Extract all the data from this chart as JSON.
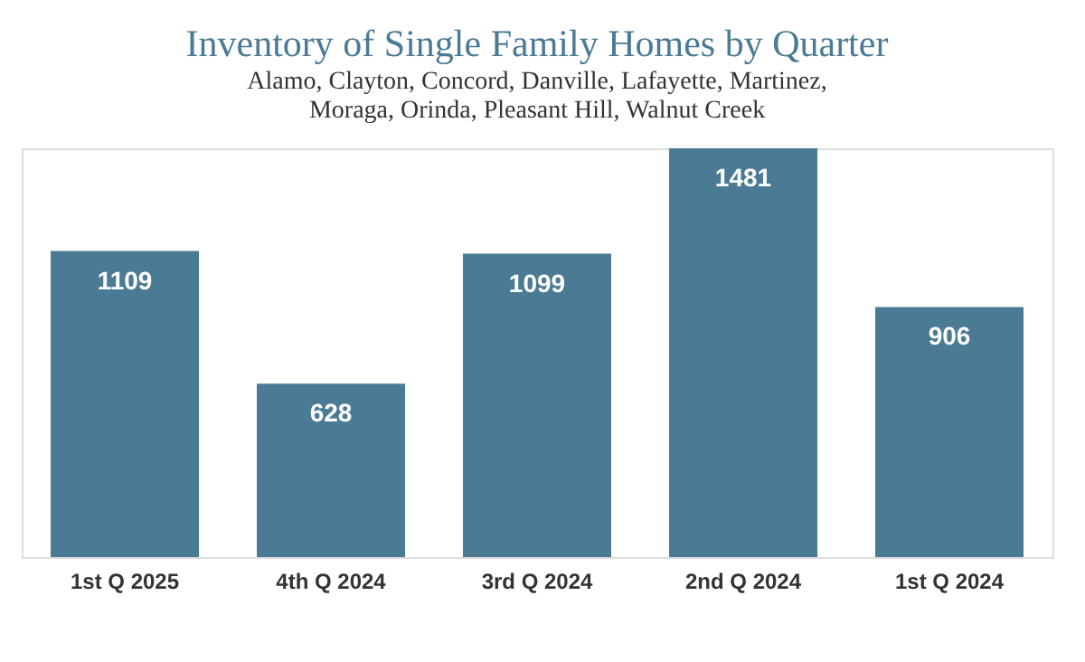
{
  "chart_data": {
    "type": "bar",
    "title": "Inventory of Single Family Homes by Quarter",
    "subtitle": [
      "Alamo, Clayton, Concord, Danville, Lafayette, Martinez,",
      "Moraga, Orinda, Pleasant Hill, Walnut Creek"
    ],
    "categories": [
      "1st Q 2025",
      "4th Q 2024",
      "3rd Q 2024",
      "2nd Q 2024",
      "1st Q 2024"
    ],
    "values": [
      1109,
      628,
      1099,
      1481,
      906
    ],
    "color": "#4a7a94",
    "data_labels": true,
    "grid": false,
    "tick_labels": "x"
  }
}
